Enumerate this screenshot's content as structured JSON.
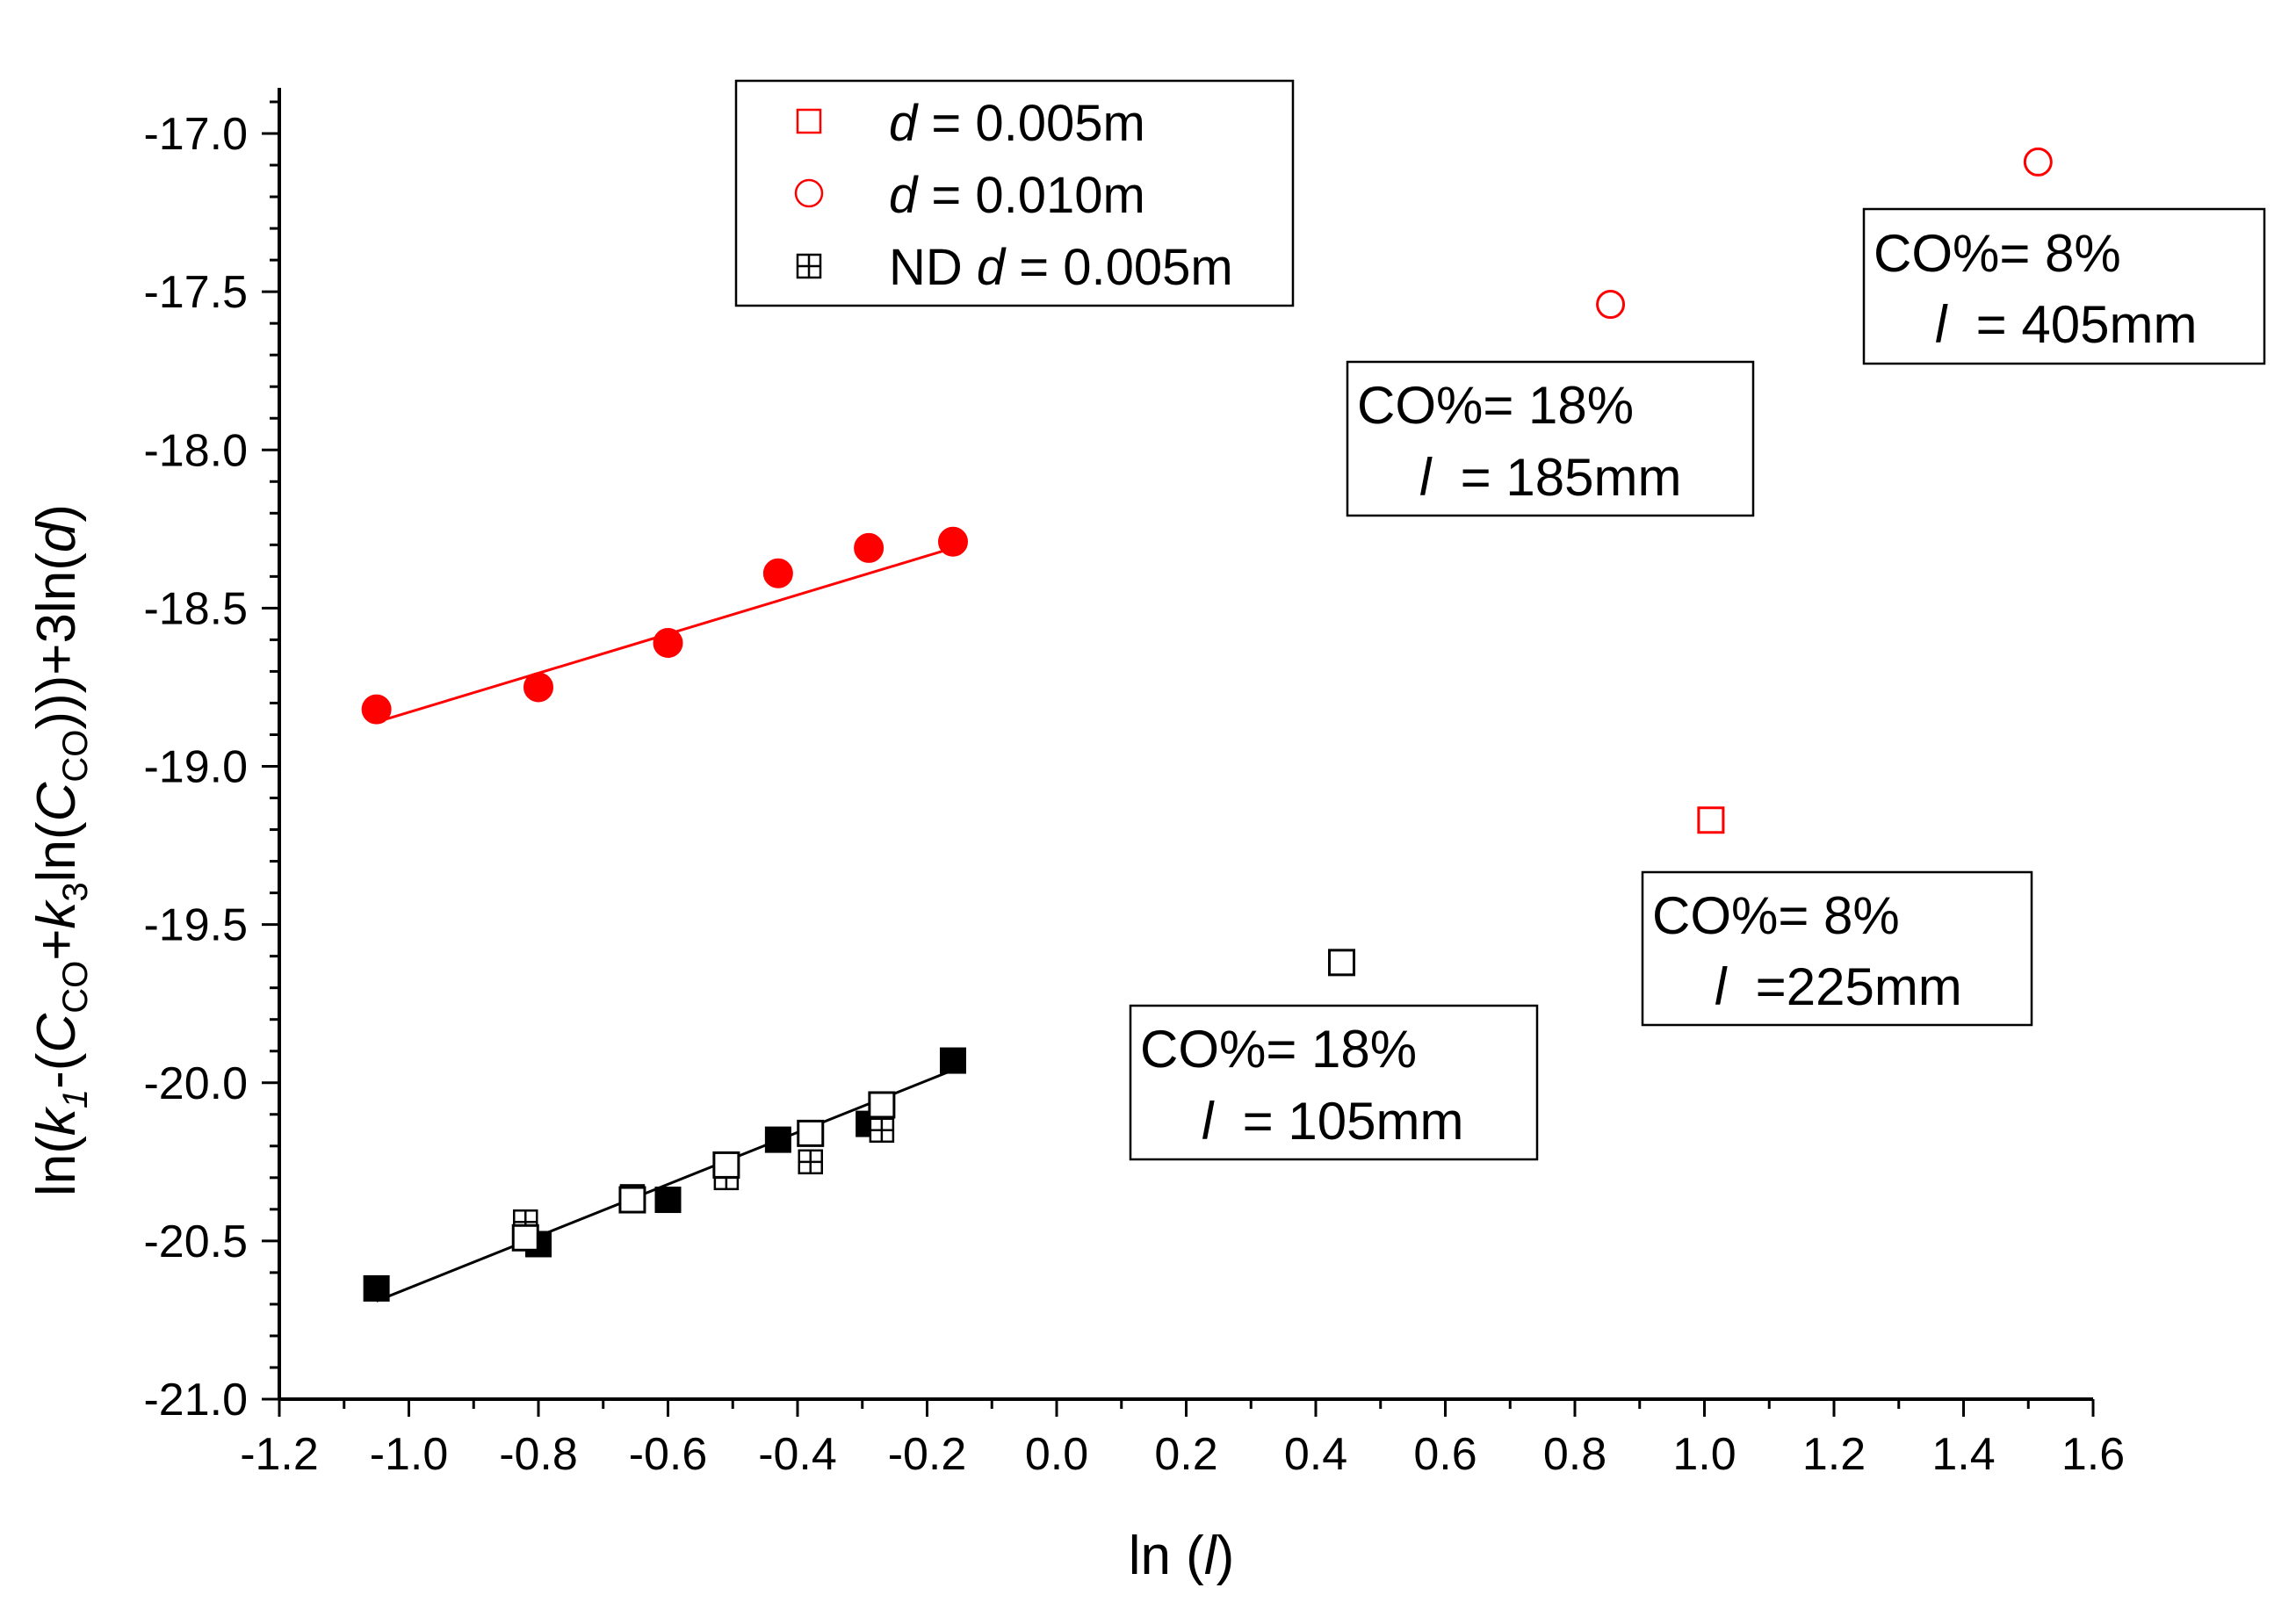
{
  "chart_data": {
    "type": "scatter",
    "title": "",
    "xlabel": {
      "prefix": "ln (",
      "var": "l",
      "suffix": ")"
    },
    "ylabel": {
      "parts": [
        {
          "t": "ln(",
          "i": false
        },
        {
          "t": "k",
          "i": true
        },
        {
          "t": "1",
          "i": true,
          "sub": true
        },
        {
          "t": "-(",
          "i": false
        },
        {
          "t": "C",
          "i": true
        },
        {
          "t": "CO",
          "i": false,
          "sub": true
        },
        {
          "t": "+",
          "i": false
        },
        {
          "t": "k",
          "i": true
        },
        {
          "t": "3",
          "i": false,
          "sub": true
        },
        {
          "t": "ln(",
          "i": false
        },
        {
          "t": "C",
          "i": true
        },
        {
          "t": "CO",
          "i": false,
          "sub": true
        },
        {
          "t": ")))+3ln(",
          "i": false
        },
        {
          "t": "d",
          "i": true
        },
        {
          "t": ")",
          "i": false
        }
      ]
    },
    "xlim": [
      -1.2,
      1.6
    ],
    "ylim": [
      -21.0,
      -16.8
    ],
    "xticks": [
      "-1.2",
      "-1.0",
      "-0.8",
      "-0.6",
      "-0.4",
      "-0.2",
      "0.0",
      "0.2",
      "0.4",
      "0.6",
      "0.8",
      "1.0",
      "1.2",
      "1.4",
      "1.6"
    ],
    "yticks": [
      "-17.0",
      "-17.5",
      "-18.0",
      "-18.5",
      "-19.0",
      "-19.5",
      "-20.0",
      "-20.5",
      "-21.0"
    ],
    "grid": false,
    "legend_position": "top-center",
    "legend": [
      {
        "pre": "",
        "var": "d",
        "post": " = 0.005m",
        "marker": "open-square",
        "color": "#ff0000"
      },
      {
        "pre": "",
        "var": "d",
        "post": " = 0.010m",
        "marker": "open-circle",
        "color": "#ff0000"
      },
      {
        "pre": "ND ",
        "var": "d",
        "post": " = 0.005m",
        "marker": "crossed-square",
        "color": "#000000"
      }
    ],
    "series": [
      {
        "name": "d = 0.010m (filled)",
        "marker": "filled-circle",
        "color": "#ff0000",
        "x": [
          -1.05,
          -0.8,
          -0.6,
          -0.43,
          -0.29,
          -0.16
        ],
        "y": [
          -18.82,
          -18.75,
          -18.61,
          -18.39,
          -18.31,
          -18.29
        ]
      },
      {
        "name": "d = 0.010m",
        "marker": "open-circle",
        "color": "#ff0000",
        "x": [
          0.855,
          1.515
        ],
        "y": [
          -17.54,
          -17.09
        ]
      },
      {
        "name": "d = 0.005m",
        "marker": "open-square",
        "color": "#ff0000",
        "x": [
          1.01
        ],
        "y": [
          -19.17
        ]
      },
      {
        "name": "d = 0.005m (filled)",
        "marker": "filled-square",
        "color": "#000000",
        "x": [
          -1.05,
          -0.8,
          -0.6,
          -0.43,
          -0.29,
          -0.16
        ],
        "y": [
          -20.65,
          -20.51,
          -20.37,
          -20.18,
          -20.13,
          -19.93
        ]
      },
      {
        "name": "ND d = 0.005m",
        "marker": "crossed-square",
        "color": "#000000",
        "x": [
          -0.82,
          -0.655,
          -0.51,
          -0.38,
          -0.27
        ],
        "y": [
          -20.44,
          -20.36,
          -20.3,
          -20.25,
          -20.15
        ]
      },
      {
        "name": "open squares",
        "marker": "open-square",
        "color": "#000000",
        "x": [
          -0.82,
          -0.655,
          -0.51,
          -0.38,
          -0.27,
          0.44
        ],
        "y": [
          -20.49,
          -20.37,
          -20.26,
          -20.16,
          -20.07,
          -19.62
        ]
      }
    ],
    "fits": [
      {
        "name": "red fit",
        "color": "#ff0000",
        "x": [
          -1.05,
          -0.16
        ],
        "y": [
          -18.86,
          -18.31
        ]
      },
      {
        "name": "black fit",
        "color": "#000000",
        "x": [
          -1.05,
          -0.16
        ],
        "y": [
          -20.69,
          -19.96
        ]
      }
    ],
    "annotations": [
      {
        "line1": "CO%= 18%",
        "var": "l",
        "line2": "  = 105mm",
        "anchor": "above point (0.44, -19.62)"
      },
      {
        "line1": "CO%= 18%",
        "var": "l",
        "line2": "  = 185mm",
        "anchor": "near point (0.855, -17.54)"
      },
      {
        "line1": "CO%= 8%",
        "var": "l",
        "line2": "  =225mm",
        "anchor": "below point (1.01, -19.17)"
      },
      {
        "line1": "CO%= 8%",
        "var": "l",
        "line2": "  = 405mm",
        "anchor": "below point (1.515, -17.09)"
      }
    ]
  }
}
